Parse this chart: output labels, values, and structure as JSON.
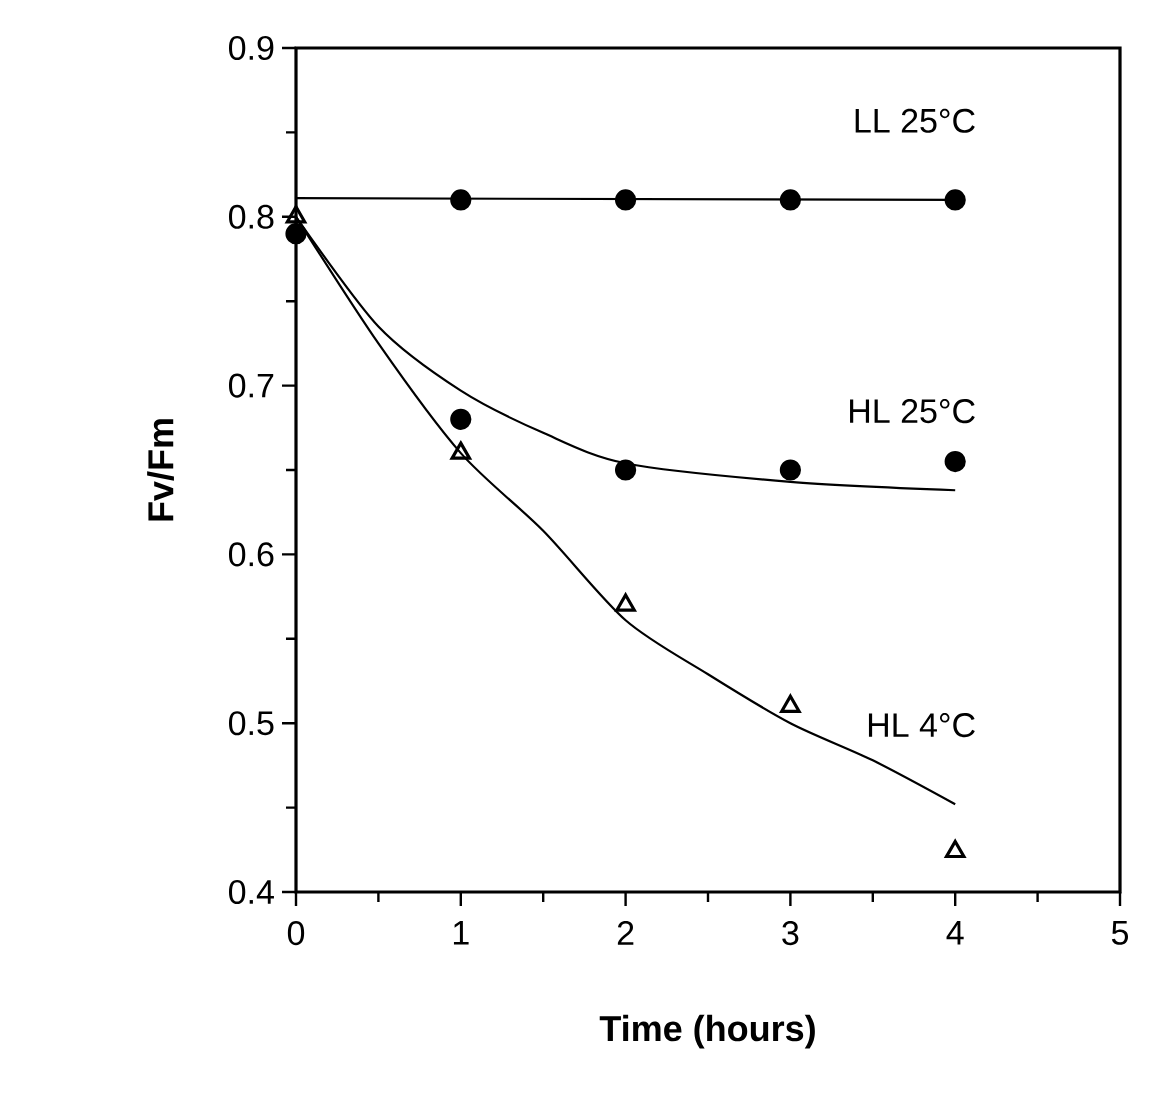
{
  "chart_data": {
    "type": "scatter",
    "xlabel": "Time    (hours)",
    "ylabel": "Fv/Fm",
    "xlim": [
      0,
      5
    ],
    "ylim": [
      0.4,
      0.9
    ],
    "xticks": [
      0,
      1,
      2,
      3,
      4,
      5
    ],
    "yticks": [
      0.4,
      0.5,
      0.6,
      0.7,
      0.8,
      0.9
    ],
    "grid": false,
    "series": [
      {
        "marker": "circle",
        "color": "#000000",
        "x": [
          1,
          2,
          3,
          4
        ],
        "values": [
          0.81,
          0.81,
          0.81,
          0.81
        ]
      },
      {
        "marker": "circle",
        "color": "#000000",
        "x": [
          0,
          1,
          2,
          3,
          4
        ],
        "values": [
          0.79,
          0.68,
          0.65,
          0.65,
          0.655
        ]
      },
      {
        "marker": "triangle",
        "color": "#000000",
        "x": [
          0,
          1,
          2,
          3,
          4
        ],
        "values": [
          0.8,
          0.66,
          0.57,
          0.51,
          0.424
        ]
      },
      {
        "type": "line",
        "name": "LL 25°C",
        "color": "#000000",
        "x": [
          0,
          4
        ],
        "values": [
          0.811,
          0.81
        ]
      },
      {
        "type": "line",
        "name": "HL 25°C",
        "color": "#000000",
        "x": [
          0,
          0.5,
          1,
          1.5,
          2,
          3,
          4
        ],
        "values": [
          0.8,
          0.735,
          0.697,
          0.672,
          0.654,
          0.643,
          0.638
        ]
      },
      {
        "type": "line",
        "name": "HL 4°C",
        "color": "#000000",
        "x": [
          0,
          0.5,
          1,
          1.5,
          2,
          2.5,
          3,
          3.5,
          4
        ],
        "values": [
          0.8,
          0.725,
          0.66,
          0.614,
          0.561,
          0.529,
          0.5,
          0.478,
          0.452
        ]
      }
    ]
  }
}
